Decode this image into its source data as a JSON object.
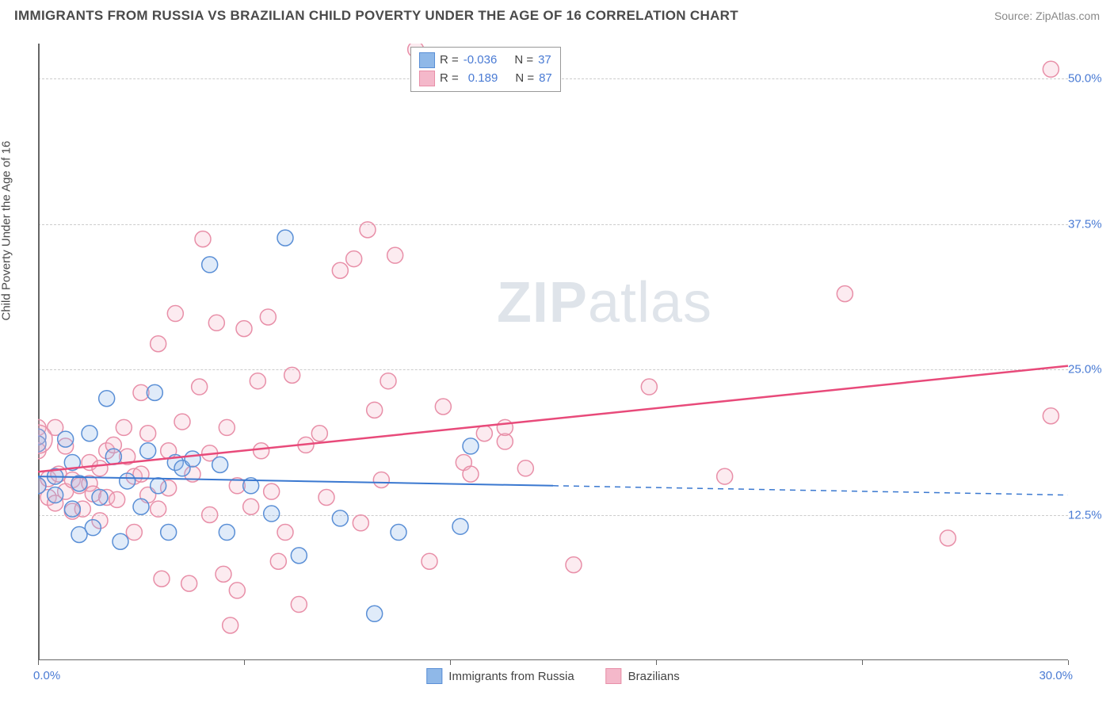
{
  "title": "IMMIGRANTS FROM RUSSIA VS BRAZILIAN CHILD POVERTY UNDER THE AGE OF 16 CORRELATION CHART",
  "source": "Source: ZipAtlas.com",
  "y_axis_label": "Child Poverty Under the Age of 16",
  "watermark": {
    "part1": "ZIP",
    "part2": "atlas"
  },
  "chart": {
    "type": "scatter",
    "background_color": "#ffffff",
    "grid_color": "#cccccc",
    "axis_color": "#666666",
    "tick_label_color": "#4a7bd4",
    "xlim": [
      0,
      30
    ],
    "xmin_label": "0.0%",
    "xmax_label": "30.0%",
    "x_ticks": [
      0,
      6,
      12,
      18,
      24,
      30
    ],
    "ylim": [
      0,
      53
    ],
    "y_gridlines": [
      50,
      37.5,
      25,
      12.5
    ],
    "y_tick_labels": [
      "50.0%",
      "37.5%",
      "25.0%",
      "12.5%"
    ],
    "marker_radius": 10,
    "marker_stroke_width": 1.5,
    "marker_fill_opacity": 0.28,
    "series": [
      {
        "name": "Immigrants from Russia",
        "stroke": "#5a8fd6",
        "fill": "#8fb8e8",
        "R": "-0.036",
        "N": "37",
        "trend": {
          "y_start": 15.8,
          "y_end": 14.2,
          "solid_end_x": 15,
          "stroke": "#3a78d0",
          "width": 2
        },
        "points": [
          [
            0.0,
            15.0
          ],
          [
            0.0,
            19.2
          ],
          [
            0.0,
            18.6
          ],
          [
            0.5,
            14.2
          ],
          [
            0.5,
            15.8
          ],
          [
            0.8,
            19.0
          ],
          [
            1.0,
            13.0
          ],
          [
            1.0,
            17.0
          ],
          [
            1.2,
            10.8
          ],
          [
            1.2,
            15.2
          ],
          [
            1.5,
            19.5
          ],
          [
            1.6,
            11.4
          ],
          [
            1.8,
            14.0
          ],
          [
            2.0,
            22.5
          ],
          [
            2.2,
            17.5
          ],
          [
            2.4,
            10.2
          ],
          [
            2.6,
            15.4
          ],
          [
            3.0,
            13.2
          ],
          [
            3.2,
            18.0
          ],
          [
            3.4,
            23.0
          ],
          [
            3.5,
            15.0
          ],
          [
            3.8,
            11.0
          ],
          [
            4.0,
            17.0
          ],
          [
            4.2,
            16.5
          ],
          [
            4.5,
            17.3
          ],
          [
            5.0,
            34.0
          ],
          [
            5.3,
            16.8
          ],
          [
            5.5,
            11.0
          ],
          [
            6.2,
            15.0
          ],
          [
            6.8,
            12.6
          ],
          [
            7.2,
            36.3
          ],
          [
            7.6,
            9.0
          ],
          [
            8.8,
            12.2
          ],
          [
            9.8,
            4.0
          ],
          [
            10.5,
            11.0
          ],
          [
            12.3,
            11.5
          ],
          [
            12.6,
            18.4
          ]
        ]
      },
      {
        "name": "Brazilians",
        "stroke": "#e88fa8",
        "fill": "#f4b8ca",
        "R": "0.189",
        "N": "87",
        "trend": {
          "y_start": 16.2,
          "y_end": 25.3,
          "solid_end_x": 30,
          "stroke": "#e84a7a",
          "width": 2.5
        },
        "points": [
          [
            0.0,
            18.0
          ],
          [
            0.0,
            15.0
          ],
          [
            0.3,
            14.0
          ],
          [
            0.3,
            15.6
          ],
          [
            0.5,
            20.0
          ],
          [
            0.5,
            13.5
          ],
          [
            0.6,
            16.0
          ],
          [
            0.8,
            14.5
          ],
          [
            0.8,
            18.4
          ],
          [
            1.0,
            15.5
          ],
          [
            1.0,
            12.8
          ],
          [
            1.2,
            15.0
          ],
          [
            1.3,
            13.0
          ],
          [
            1.5,
            17.0
          ],
          [
            1.5,
            15.2
          ],
          [
            1.6,
            14.3
          ],
          [
            1.8,
            16.5
          ],
          [
            1.8,
            12.0
          ],
          [
            2.0,
            14.0
          ],
          [
            2.0,
            18.0
          ],
          [
            2.2,
            18.5
          ],
          [
            2.3,
            13.8
          ],
          [
            2.5,
            20.0
          ],
          [
            2.6,
            17.5
          ],
          [
            2.8,
            11.0
          ],
          [
            2.8,
            15.8
          ],
          [
            3.0,
            16.0
          ],
          [
            3.0,
            23.0
          ],
          [
            3.2,
            19.5
          ],
          [
            3.2,
            14.2
          ],
          [
            3.5,
            27.2
          ],
          [
            3.5,
            13.0
          ],
          [
            3.6,
            7.0
          ],
          [
            3.8,
            18.0
          ],
          [
            3.8,
            14.8
          ],
          [
            4.0,
            29.8
          ],
          [
            4.2,
            20.5
          ],
          [
            4.4,
            6.6
          ],
          [
            4.5,
            16.0
          ],
          [
            4.7,
            23.5
          ],
          [
            4.8,
            36.2
          ],
          [
            5.0,
            12.5
          ],
          [
            5.0,
            17.8
          ],
          [
            5.2,
            29.0
          ],
          [
            5.4,
            7.4
          ],
          [
            5.5,
            20.0
          ],
          [
            5.6,
            3.0
          ],
          [
            5.8,
            15.0
          ],
          [
            5.8,
            6.0
          ],
          [
            6.0,
            28.5
          ],
          [
            6.2,
            13.2
          ],
          [
            6.4,
            24.0
          ],
          [
            6.5,
            18.0
          ],
          [
            6.7,
            29.5
          ],
          [
            6.8,
            14.5
          ],
          [
            7.0,
            8.5
          ],
          [
            7.2,
            11.0
          ],
          [
            7.4,
            24.5
          ],
          [
            7.6,
            4.8
          ],
          [
            7.8,
            18.5
          ],
          [
            8.2,
            19.5
          ],
          [
            8.4,
            14.0
          ],
          [
            8.8,
            33.5
          ],
          [
            9.2,
            34.5
          ],
          [
            9.4,
            11.8
          ],
          [
            9.6,
            37.0
          ],
          [
            9.8,
            21.5
          ],
          [
            10.0,
            15.5
          ],
          [
            10.2,
            24.0
          ],
          [
            10.4,
            34.8
          ],
          [
            11.0,
            52.5
          ],
          [
            11.4,
            8.5
          ],
          [
            11.8,
            21.8
          ],
          [
            12.4,
            17.0
          ],
          [
            12.6,
            16.0
          ],
          [
            13.0,
            19.5
          ],
          [
            13.6,
            18.8
          ],
          [
            13.6,
            20.0
          ],
          [
            14.2,
            16.5
          ],
          [
            15.6,
            8.2
          ],
          [
            17.8,
            23.5
          ],
          [
            20.0,
            15.8
          ],
          [
            23.5,
            31.5
          ],
          [
            26.5,
            10.5
          ],
          [
            29.5,
            50.8
          ],
          [
            29.5,
            21.0
          ],
          [
            0.0,
            20.0
          ]
        ]
      }
    ]
  },
  "legend_top": {
    "labels": {
      "R": "R =",
      "N": "N ="
    }
  },
  "legend_bottom": [
    {
      "label": "Immigrants from Russia",
      "stroke": "#5a8fd6",
      "fill": "#8fb8e8"
    },
    {
      "label": "Brazilians",
      "stroke": "#e88fa8",
      "fill": "#f4b8ca"
    }
  ]
}
